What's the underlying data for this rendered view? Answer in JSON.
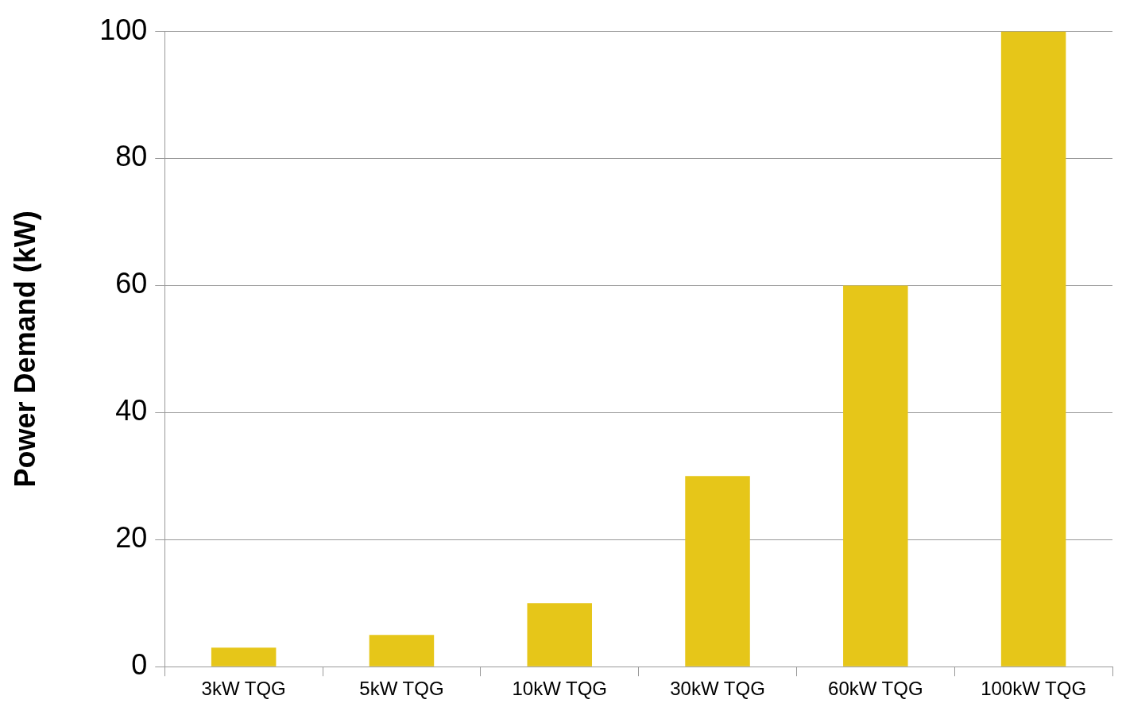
{
  "chart_data": {
    "type": "bar",
    "ylabel": "Power Demand (kW)",
    "categories": [
      "3kW TQG",
      "5kW TQG",
      "10kW TQG",
      "30kW TQG",
      "60kW TQG",
      "100kW TQG"
    ],
    "values": [
      3,
      5,
      10,
      30,
      60,
      100
    ],
    "color": "#e6c619",
    "ylim": [
      0,
      100
    ],
    "yticks": [
      0,
      20,
      40,
      60,
      80,
      100
    ],
    "grid": "y",
    "legend": false
  }
}
